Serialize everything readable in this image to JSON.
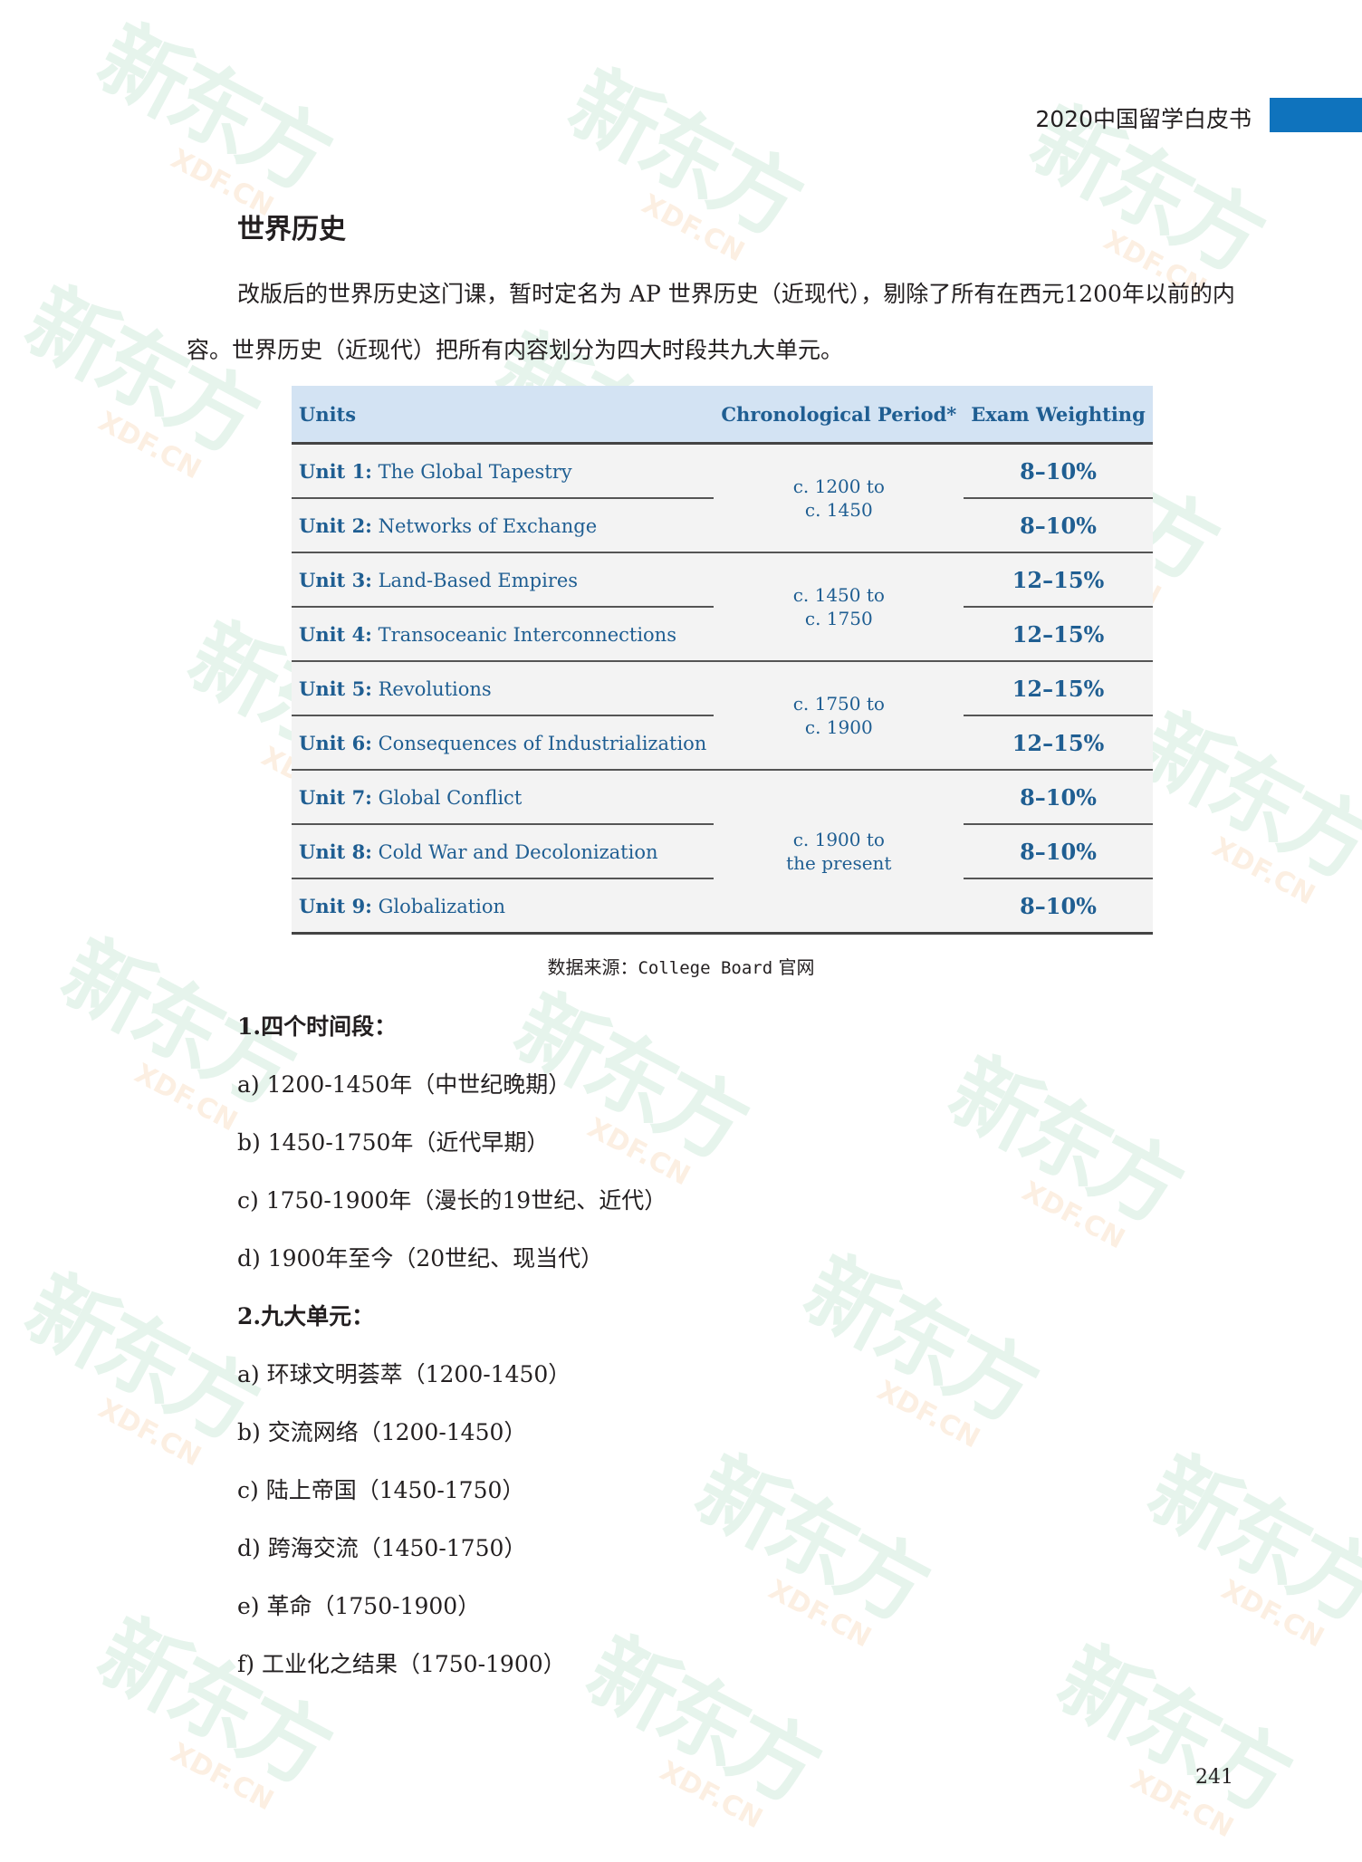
{
  "header": {
    "title": "2020中国留学白皮书",
    "accent_color": "#0f73bd"
  },
  "section": {
    "title": "世界历史",
    "intro": "改版后的世界历史这门课，暂时定名为 AP 世界历史（近现代），剔除了所有在西元1200年以前的内容。世界历史（近现代）把所有内容划分为四大时段共九大单元。"
  },
  "table": {
    "headers": {
      "units": "Units",
      "period": "Chronological Period*",
      "weighting": "Exam Weighting"
    },
    "rows": [
      {
        "unit_no": "Unit 1:",
        "unit_name": " The Global Tapestry",
        "weight": "8–10%"
      },
      {
        "unit_no": "Unit 2:",
        "unit_name": " Networks of Exchange",
        "weight": "8–10%"
      },
      {
        "unit_no": "Unit 3:",
        "unit_name": " Land-Based Empires",
        "weight": "12–15%"
      },
      {
        "unit_no": "Unit 4:",
        "unit_name": " Transoceanic Interconnections",
        "weight": "12–15%"
      },
      {
        "unit_no": "Unit 5:",
        "unit_name": " Revolutions",
        "weight": "12–15%"
      },
      {
        "unit_no": "Unit 6:",
        "unit_name": " Consequences of Industrialization",
        "weight": "12–15%"
      },
      {
        "unit_no": "Unit 7:",
        "unit_name": " Global Conflict",
        "weight": "8–10%"
      },
      {
        "unit_no": "Unit 8:",
        "unit_name": " Cold War and Decolonization",
        "weight": "8–10%"
      },
      {
        "unit_no": "Unit 9:",
        "unit_name": " Globalization",
        "weight": "8–10%"
      }
    ],
    "periods": [
      {
        "line1": "c. 1200 to",
        "line2": "c. 1450"
      },
      {
        "line1": "c. 1450 to",
        "line2": "c. 1750"
      },
      {
        "line1": "c. 1750 to",
        "line2": "c. 1900"
      },
      {
        "line1": "c. 1900 to",
        "line2": "the present"
      }
    ],
    "header_bg": "#d3e3f3",
    "text_color": "#1f5e92"
  },
  "caption": {
    "prefix": "数据来源：",
    "source": "College Board",
    "suffix": " 官网"
  },
  "periods_list": {
    "heading": "1.四个时间段：",
    "items": [
      "a) 1200-1450年（中世纪晚期）",
      "b) 1450-1750年（近代早期）",
      "c) 1750-1900年（漫长的19世纪、近代）",
      "d) 1900年至今（20世纪、现当代）"
    ]
  },
  "units_list": {
    "heading": "2.九大单元：",
    "items": [
      "a) 环球文明荟萃（1200-1450）",
      "b) 交流网络（1200-1450）",
      "c) 陆上帝国（1450-1750）",
      "d) 跨海交流（1450-1750）",
      "e) 革命（1750-1900）",
      "f) 工业化之结果（1750-1900）"
    ]
  },
  "page_number": "241",
  "watermark": {
    "cn": "新东方",
    "en": "XDF.CN"
  }
}
